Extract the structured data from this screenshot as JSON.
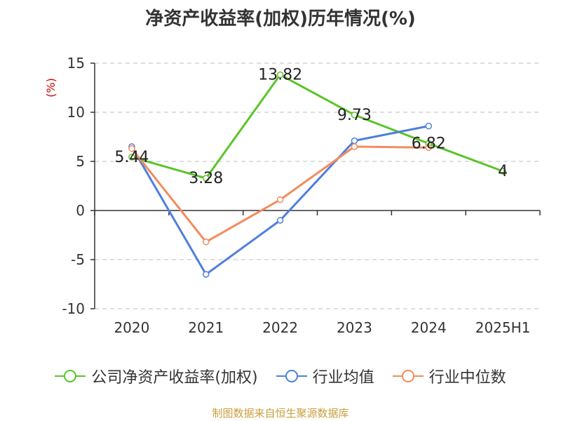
{
  "chart_data": {
    "type": "line",
    "title": "净资产收益率(加权)历年情况(%)",
    "ylabel": "(%)",
    "xlabel": "",
    "categories": [
      "2020",
      "2021",
      "2022",
      "2023",
      "2024",
      "2025H1"
    ],
    "ylim": [
      -10,
      15
    ],
    "yticks": [
      "15",
      "10",
      "5",
      "0",
      "-5",
      "-10"
    ],
    "grid": true,
    "legend_position": "bottom",
    "series": [
      {
        "name": "公司净资产收益率(加权)",
        "color": "#5bc42a",
        "values": [
          5.44,
          3.28,
          13.82,
          9.73,
          6.82,
          4
        ],
        "labels": [
          "5.44",
          "3.28",
          "13.82",
          "9.73",
          "6.82",
          "4"
        ]
      },
      {
        "name": "行业均值",
        "color": "#4f7fdc",
        "values": [
          6.5,
          -6.5,
          -1.0,
          7.1,
          8.6,
          null
        ]
      },
      {
        "name": "行业中位数",
        "color": "#f28c5c",
        "values": [
          6.3,
          -3.2,
          1.1,
          6.5,
          6.4,
          null
        ]
      }
    ]
  },
  "source": "制图数据来自恒生聚源数据库"
}
